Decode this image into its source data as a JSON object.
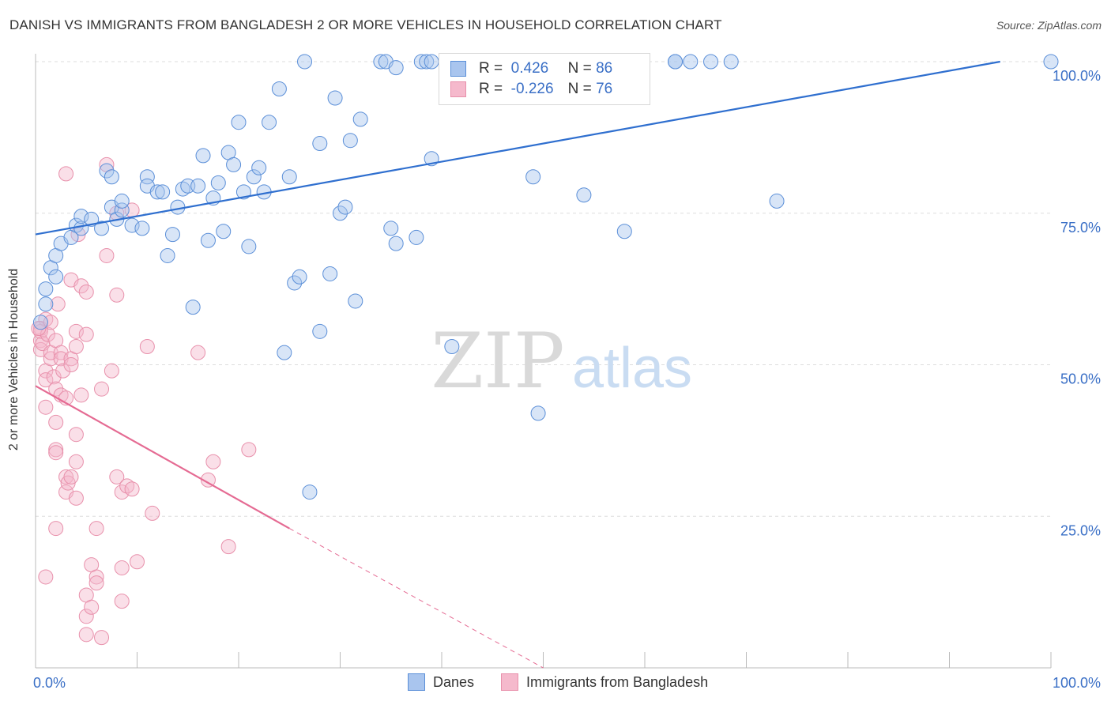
{
  "title": "DANISH VS IMMIGRANTS FROM BANGLADESH 2 OR MORE VEHICLES IN HOUSEHOLD CORRELATION CHART",
  "source": "Source: ZipAtlas.com",
  "watermark": {
    "zip": "ZIP",
    "atlas": "atlas"
  },
  "legend": {
    "rows": [
      {
        "r_label": "R =",
        "r_value": "0.426",
        "n_label": "N =",
        "n_value": "86"
      },
      {
        "r_label": "R =",
        "r_value": "-0.226",
        "n_label": "N =",
        "n_value": "76"
      }
    ]
  },
  "bottom_legend": {
    "series1": "Danes",
    "series2": "Immigrants from Bangladesh"
  },
  "colors": {
    "blue_fill": "#a9c5ee",
    "blue_stroke": "#5b8fd8",
    "blue_line": "#2f6fcf",
    "pink_fill": "#f5b9cc",
    "pink_stroke": "#e890ab",
    "pink_line": "#e56b93",
    "axis_text_blue": "#3a6fc6",
    "grid": "#dddddd"
  },
  "chart_data": {
    "type": "scatter",
    "title": "DANISH VS IMMIGRANTS FROM BANGLADESH 2 OR MORE VEHICLES IN HOUSEHOLD CORRELATION CHART",
    "xlabel": "",
    "ylabel": "2 or more Vehicles in Household",
    "xlim": [
      0,
      100
    ],
    "ylim": [
      0,
      100
    ],
    "x_tick_labels": [
      "0.0%",
      "100.0%"
    ],
    "y_tick_labels": [
      "100.0%",
      "75.0%",
      "50.0%",
      "25.0%"
    ],
    "y_tick_values": [
      100,
      75,
      50,
      25
    ],
    "grid": "horizontal dashed",
    "legend_position": "top-center",
    "series": [
      {
        "name": "Danes",
        "r": 0.426,
        "n": 86,
        "trend": {
          "x": [
            0,
            95
          ],
          "y": [
            71.5,
            100
          ]
        },
        "points": [
          [
            1,
            60
          ],
          [
            1,
            62.5
          ],
          [
            1.5,
            66
          ],
          [
            2,
            64.5
          ],
          [
            2,
            68
          ],
          [
            2.5,
            70
          ],
          [
            3.5,
            71
          ],
          [
            4,
            73
          ],
          [
            4.5,
            72.5
          ],
          [
            4.5,
            74.5
          ],
          [
            5.5,
            74
          ],
          [
            6.5,
            72.5
          ],
          [
            7,
            82
          ],
          [
            7.5,
            81
          ],
          [
            7.5,
            76
          ],
          [
            8,
            74
          ],
          [
            8.5,
            75.5
          ],
          [
            8.5,
            77
          ],
          [
            9.5,
            73
          ],
          [
            10.5,
            72.5
          ],
          [
            11,
            81
          ],
          [
            11,
            79.5
          ],
          [
            12,
            78.5
          ],
          [
            12.5,
            78.5
          ],
          [
            13,
            68
          ],
          [
            13.5,
            71.5
          ],
          [
            14,
            76
          ],
          [
            14.5,
            79
          ],
          [
            15,
            79.5
          ],
          [
            15.5,
            59.5
          ],
          [
            16,
            79.5
          ],
          [
            16.5,
            84.5
          ],
          [
            17,
            70.5
          ],
          [
            17.5,
            77.5
          ],
          [
            18,
            80
          ],
          [
            18.5,
            72
          ],
          [
            19,
            85
          ],
          [
            19.5,
            83
          ],
          [
            20,
            90
          ],
          [
            20.5,
            78.5
          ],
          [
            21,
            69.5
          ],
          [
            21.5,
            81
          ],
          [
            22,
            82.5
          ],
          [
            22.5,
            78.5
          ],
          [
            23,
            90
          ],
          [
            24,
            95.5
          ],
          [
            24.5,
            52
          ],
          [
            25,
            81
          ],
          [
            25.5,
            63.5
          ],
          [
            26,
            64.5
          ],
          [
            26.5,
            100
          ],
          [
            27,
            29
          ],
          [
            28,
            86.5
          ],
          [
            28,
            55.5
          ],
          [
            29,
            65
          ],
          [
            29.5,
            94
          ],
          [
            30,
            75
          ],
          [
            30.5,
            76
          ],
          [
            31,
            87
          ],
          [
            31.5,
            60.5
          ],
          [
            32,
            90.5
          ],
          [
            34,
            100
          ],
          [
            34.5,
            100
          ],
          [
            35,
            72.5
          ],
          [
            35.5,
            70
          ],
          [
            35.5,
            99
          ],
          [
            37.5,
            71
          ],
          [
            38,
            100
          ],
          [
            38.5,
            100
          ],
          [
            39,
            100
          ],
          [
            39,
            84
          ],
          [
            41,
            53
          ],
          [
            49,
            81
          ],
          [
            49.5,
            42
          ],
          [
            52,
            100
          ],
          [
            52.5,
            100
          ],
          [
            54,
            78
          ],
          [
            58,
            72
          ],
          [
            63,
            100
          ],
          [
            63,
            100
          ],
          [
            64.5,
            100
          ],
          [
            66.5,
            100
          ],
          [
            68.5,
            100
          ],
          [
            73,
            77
          ],
          [
            100,
            100
          ],
          [
            0.5,
            57
          ]
        ]
      },
      {
        "name": "Immigrants from Bangladesh",
        "r": -0.226,
        "n": 76,
        "trend": {
          "x": [
            0,
            25
          ],
          "y": [
            46.5,
            23
          ],
          "dashed_to": {
            "x": [
              25,
              50
            ],
            "y": [
              23,
              0
            ]
          }
        },
        "points": [
          [
            0.5,
            56
          ],
          [
            0.5,
            54
          ],
          [
            0.5,
            52.5
          ],
          [
            0.5,
            55.5
          ],
          [
            0.7,
            53.5
          ],
          [
            1,
            57.5
          ],
          [
            1,
            49
          ],
          [
            1,
            47.5
          ],
          [
            1,
            43
          ],
          [
            1,
            15
          ],
          [
            1.2,
            55
          ],
          [
            1.5,
            51
          ],
          [
            1.5,
            57
          ],
          [
            1.5,
            52
          ],
          [
            1.8,
            48
          ],
          [
            2,
            54
          ],
          [
            2,
            46
          ],
          [
            2,
            40.5
          ],
          [
            2,
            36
          ],
          [
            2,
            35.5
          ],
          [
            2,
            23
          ],
          [
            2.2,
            60
          ],
          [
            2.5,
            52
          ],
          [
            2.5,
            51
          ],
          [
            2.5,
            45
          ],
          [
            2.7,
            49
          ],
          [
            3,
            44.5
          ],
          [
            3,
            31.5
          ],
          [
            3,
            29
          ],
          [
            3.2,
            30.5
          ],
          [
            3.5,
            64
          ],
          [
            3.5,
            51
          ],
          [
            3.5,
            50
          ],
          [
            3.5,
            31.5
          ],
          [
            4,
            55.5
          ],
          [
            4,
            53
          ],
          [
            4,
            38.5
          ],
          [
            4,
            34
          ],
          [
            4,
            28
          ],
          [
            4.2,
            71.5
          ],
          [
            4.5,
            63
          ],
          [
            4.5,
            45
          ],
          [
            5,
            55
          ],
          [
            5,
            62
          ],
          [
            5,
            12
          ],
          [
            5,
            8.5
          ],
          [
            5,
            5.5
          ],
          [
            5.5,
            17
          ],
          [
            5.5,
            10
          ],
          [
            6,
            15
          ],
          [
            6,
            14
          ],
          [
            6,
            23
          ],
          [
            6.5,
            5
          ],
          [
            6.5,
            46
          ],
          [
            7,
            83
          ],
          [
            7,
            68
          ],
          [
            7.5,
            49
          ],
          [
            8,
            75
          ],
          [
            8,
            61.5
          ],
          [
            8,
            31.5
          ],
          [
            8.5,
            29
          ],
          [
            8.5,
            11
          ],
          [
            8.5,
            16.5
          ],
          [
            9,
            30
          ],
          [
            9.5,
            75.5
          ],
          [
            9.5,
            29.5
          ],
          [
            10,
            17.5
          ],
          [
            11,
            53
          ],
          [
            11.5,
            25.5
          ],
          [
            16,
            52
          ],
          [
            17,
            31
          ],
          [
            17.5,
            34
          ],
          [
            19,
            20
          ],
          [
            21,
            36
          ],
          [
            3,
            81.5
          ],
          [
            0.3,
            56
          ]
        ]
      }
    ]
  }
}
